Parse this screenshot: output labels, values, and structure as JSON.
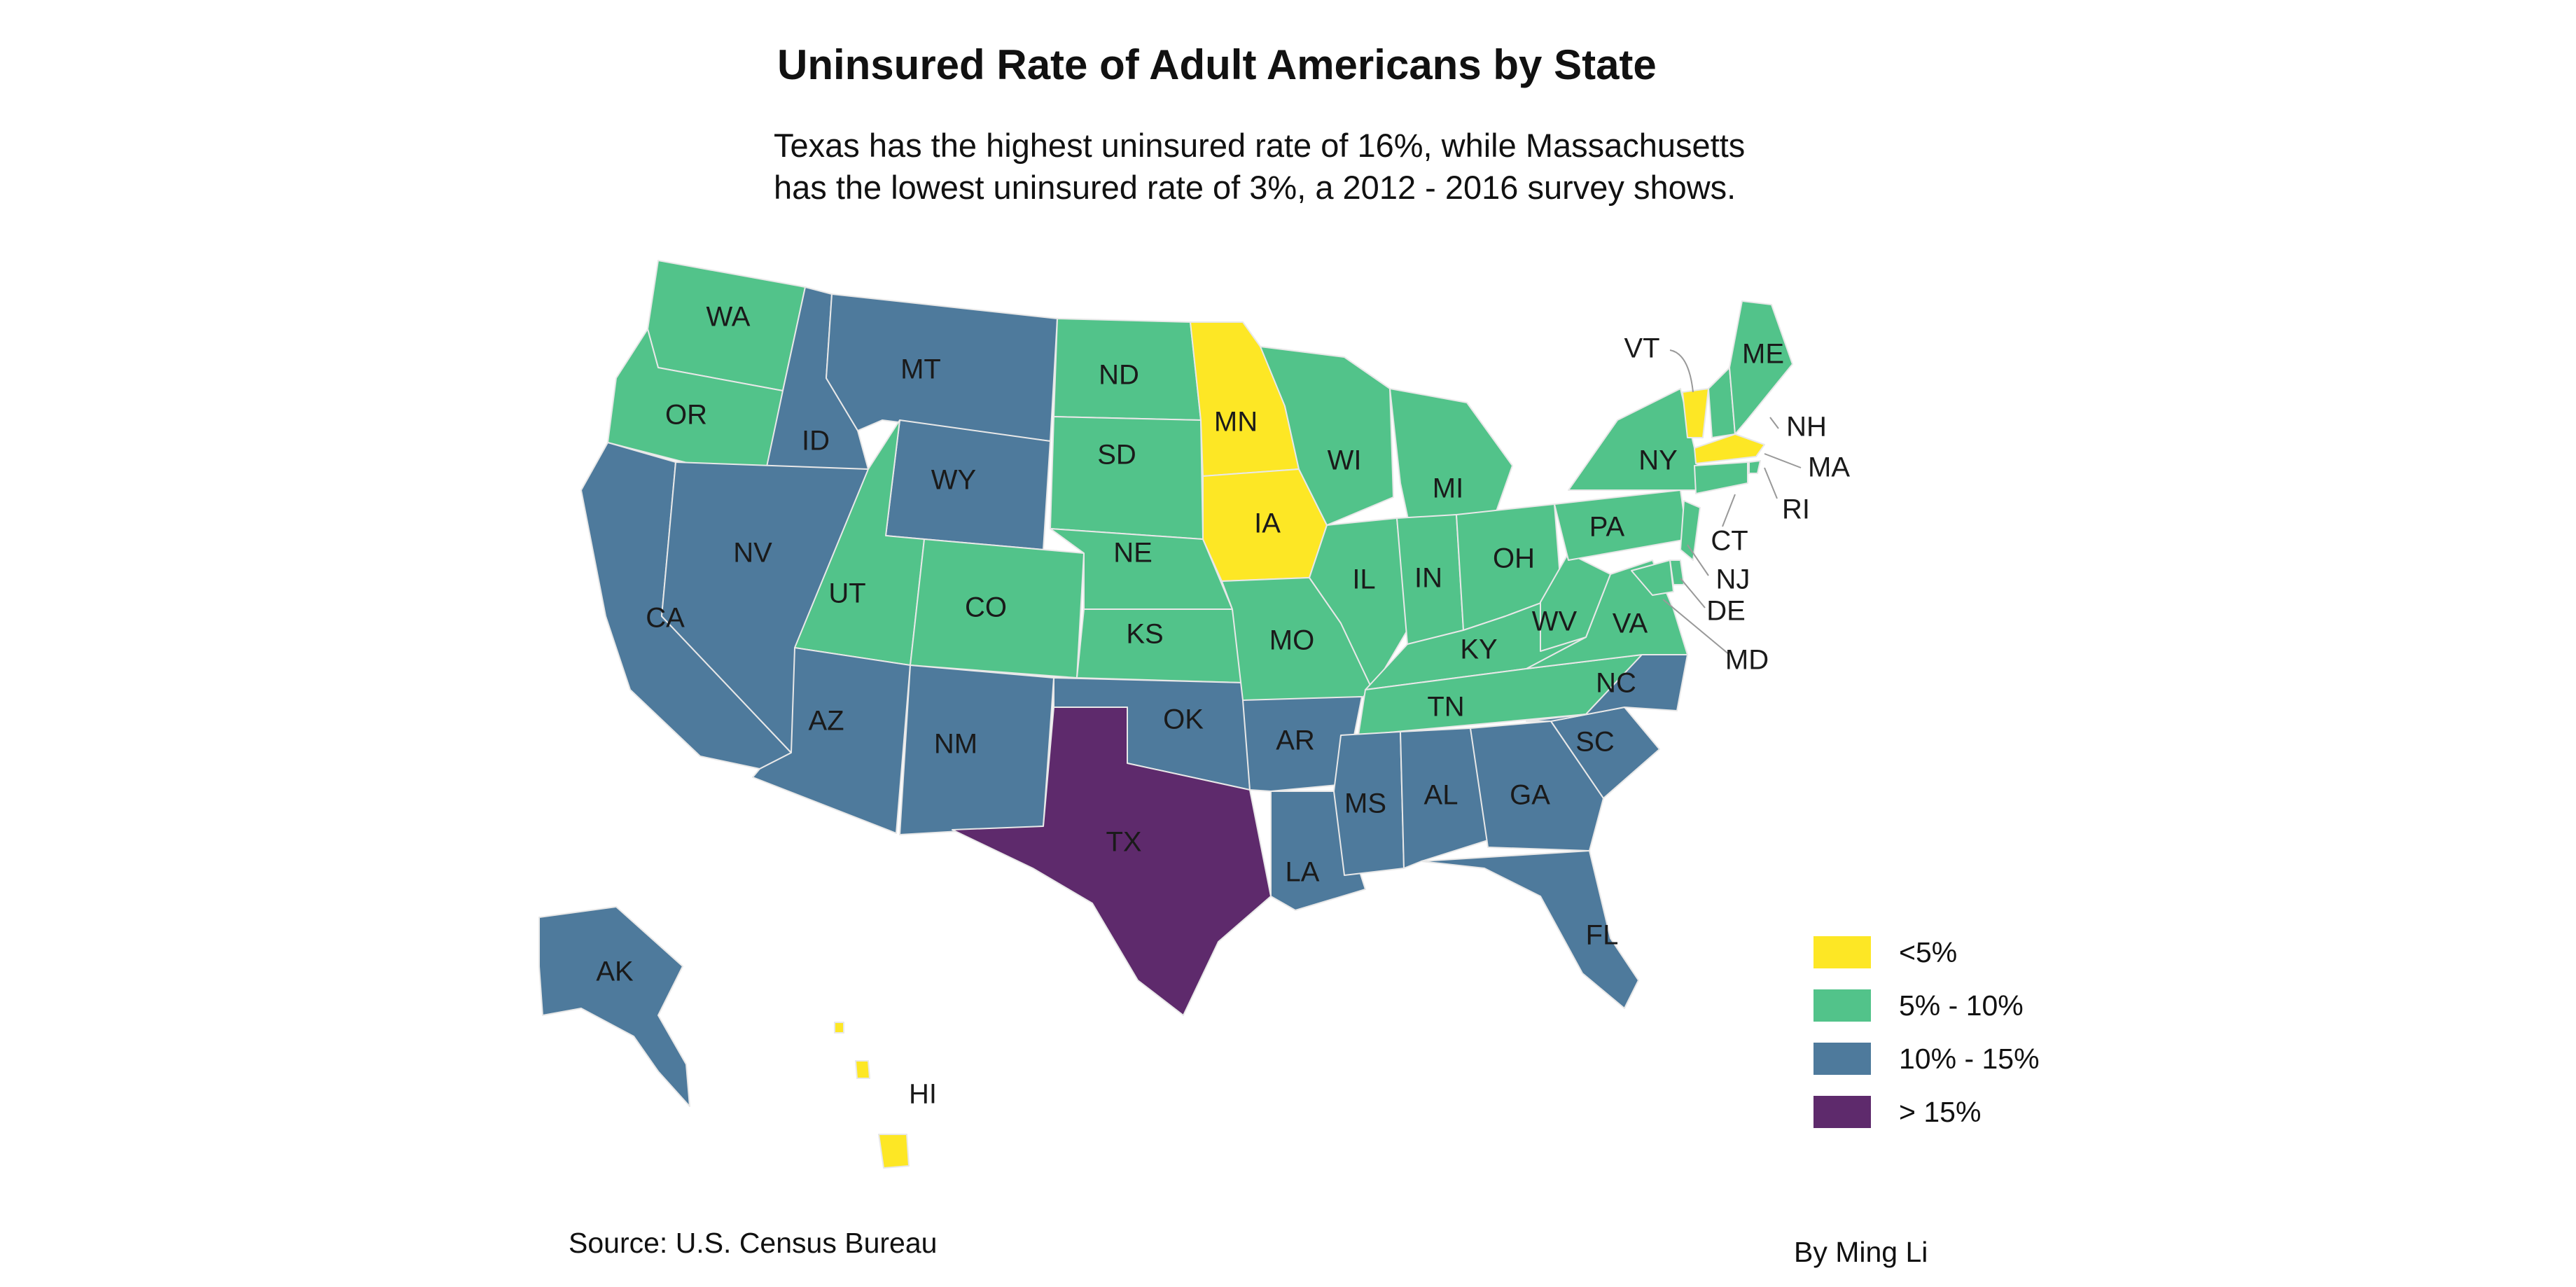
{
  "title": "Uninsured Rate of Adult Americans by State",
  "subtitle": [
    "Texas has the highest uninsured rate of 16%, while Massachusetts",
    "has the lowest uninsured rate of 3%,  a 2012 - 2016 survey shows."
  ],
  "source": "Source: U.S. Census Bureau",
  "byline": "By Ming Li",
  "legend": [
    {
      "key": "lt5",
      "label": "<5%",
      "color": "#fde725"
    },
    {
      "key": "5to10",
      "label": "5% - 10%",
      "color": "#52c38a"
    },
    {
      "key": "10to15",
      "label": "10% - 15%",
      "color": "#4e7a9c"
    },
    {
      "key": "gt15",
      "label": "> 15%",
      "color": "#5e2a6c"
    }
  ],
  "states": [
    {
      "abbr": "WA",
      "category": "5to10"
    },
    {
      "abbr": "OR",
      "category": "5to10"
    },
    {
      "abbr": "CA",
      "category": "10to15"
    },
    {
      "abbr": "ID",
      "category": "10to15"
    },
    {
      "abbr": "NV",
      "category": "10to15"
    },
    {
      "abbr": "MT",
      "category": "10to15"
    },
    {
      "abbr": "WY",
      "category": "10to15"
    },
    {
      "abbr": "UT",
      "category": "5to10"
    },
    {
      "abbr": "AZ",
      "category": "10to15"
    },
    {
      "abbr": "CO",
      "category": "5to10"
    },
    {
      "abbr": "NM",
      "category": "10to15"
    },
    {
      "abbr": "ND",
      "category": "5to10"
    },
    {
      "abbr": "SD",
      "category": "5to10"
    },
    {
      "abbr": "NE",
      "category": "5to10"
    },
    {
      "abbr": "KS",
      "category": "5to10"
    },
    {
      "abbr": "OK",
      "category": "10to15"
    },
    {
      "abbr": "TX",
      "category": "gt15"
    },
    {
      "abbr": "MN",
      "category": "lt5"
    },
    {
      "abbr": "IA",
      "category": "lt5"
    },
    {
      "abbr": "MO",
      "category": "5to10"
    },
    {
      "abbr": "AR",
      "category": "10to15"
    },
    {
      "abbr": "LA",
      "category": "10to15"
    },
    {
      "abbr": "WI",
      "category": "5to10"
    },
    {
      "abbr": "IL",
      "category": "5to10"
    },
    {
      "abbr": "MI",
      "category": "5to10"
    },
    {
      "abbr": "IN",
      "category": "5to10"
    },
    {
      "abbr": "OH",
      "category": "5to10"
    },
    {
      "abbr": "KY",
      "category": "5to10"
    },
    {
      "abbr": "TN",
      "category": "5to10"
    },
    {
      "abbr": "MS",
      "category": "10to15"
    },
    {
      "abbr": "AL",
      "category": "10to15"
    },
    {
      "abbr": "GA",
      "category": "10to15"
    },
    {
      "abbr": "FL",
      "category": "10to15"
    },
    {
      "abbr": "SC",
      "category": "10to15"
    },
    {
      "abbr": "NC",
      "category": "10to15"
    },
    {
      "abbr": "VA",
      "category": "5to10"
    },
    {
      "abbr": "WV",
      "category": "5to10"
    },
    {
      "abbr": "PA",
      "category": "5to10"
    },
    {
      "abbr": "NY",
      "category": "5to10"
    },
    {
      "abbr": "VT",
      "category": "lt5"
    },
    {
      "abbr": "NH",
      "category": "5to10"
    },
    {
      "abbr": "ME",
      "category": "5to10"
    },
    {
      "abbr": "MA",
      "category": "lt5"
    },
    {
      "abbr": "RI",
      "category": "5to10"
    },
    {
      "abbr": "CT",
      "category": "5to10"
    },
    {
      "abbr": "NJ",
      "category": "5to10"
    },
    {
      "abbr": "DE",
      "category": "5to10"
    },
    {
      "abbr": "MD",
      "category": "5to10"
    },
    {
      "abbr": "AK",
      "category": "10to15"
    },
    {
      "abbr": "HI",
      "category": "lt5"
    }
  ]
}
